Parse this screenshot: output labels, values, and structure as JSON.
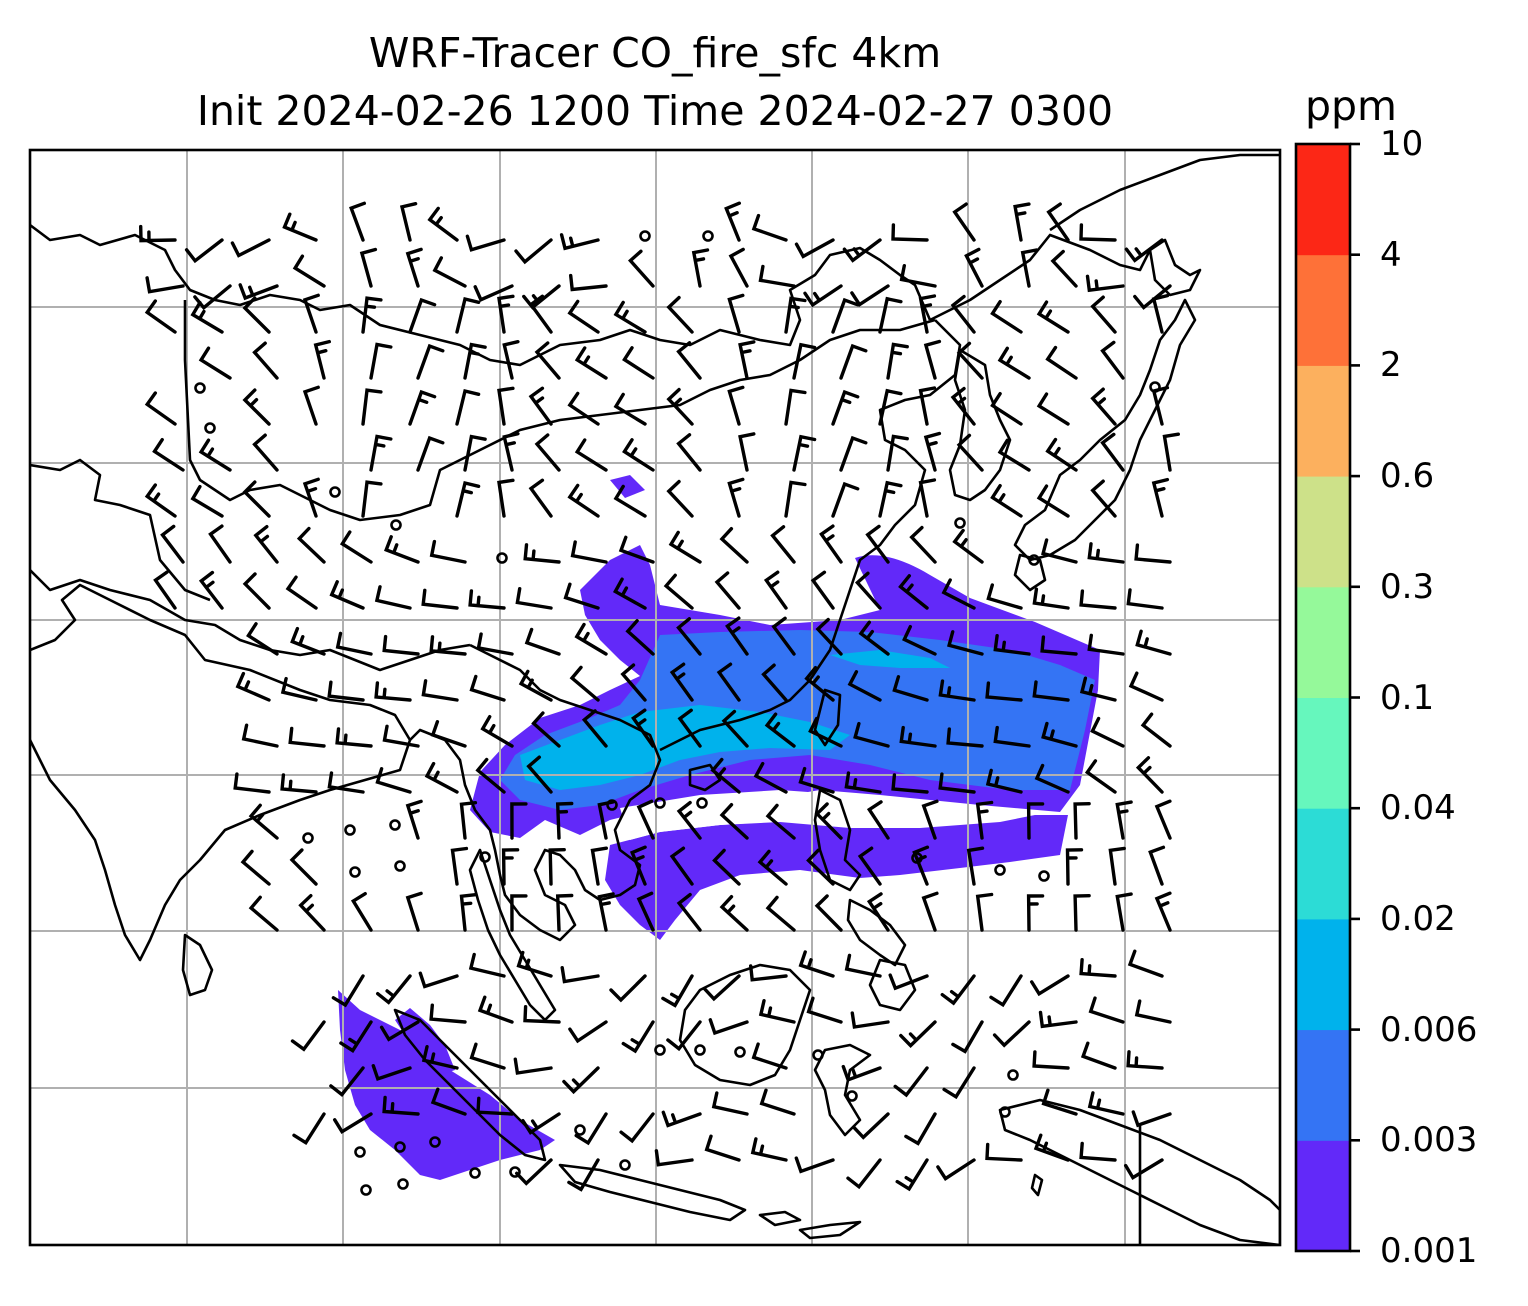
{
  "title": {
    "line1": "WRF-Tracer CO_fire_sfc 4km",
    "line2": "Init 2024-02-26 1200 Time 2024-02-27 0300"
  },
  "colorbar": {
    "unit": "ppm",
    "levels": [
      "0.001",
      "0.003",
      "0.006",
      "0.02",
      "0.04",
      "0.1",
      "0.3",
      "0.6",
      "2",
      "4",
      "10"
    ],
    "colors": [
      "#6229f9",
      "#3474f4",
      "#00b2ec",
      "#2cdcd6",
      "#66f7bd",
      "#95f99a",
      "#cde189",
      "#fcb05e",
      "#fe7138",
      "#fc2716"
    ]
  },
  "map": {
    "gridline_color": "#b0b0b0",
    "coastline_color": "#000000",
    "wind_barbs": true
  }
}
